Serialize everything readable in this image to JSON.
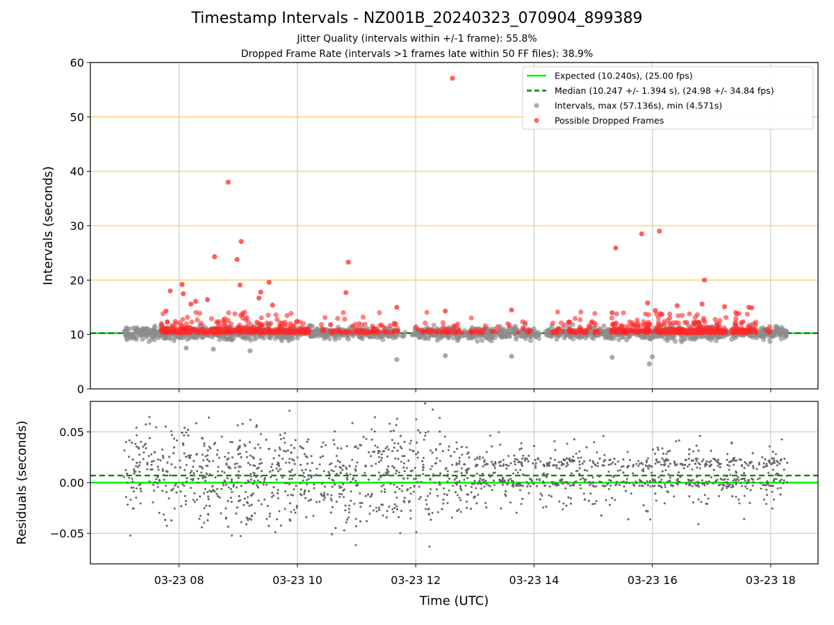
{
  "header": {
    "title": "Timestamp Intervals - NZ001B_20240323_070904_899389",
    "subtitle1": "Jitter Quality (intervals within +/-1 frame): 55.8%",
    "subtitle2": "Dropped Frame Rate (intervals >1 frames late within 50 FF files): 38.9%"
  },
  "colors": {
    "expected": "#00ee00",
    "median": "#007a00",
    "intervals": "#8c8c8c",
    "dropped": "#ff2a2a",
    "threshold": "#ffcc66",
    "grid": "#cccccc",
    "residuals": "#666666"
  },
  "chart_data": [
    {
      "type": "scatter",
      "ylabel": "Intervals (seconds)",
      "xlim": [
        6.5,
        18.8
      ],
      "ylim": [
        0,
        60
      ],
      "yticks": [
        "0",
        "10",
        "20",
        "30",
        "40",
        "50",
        "60"
      ],
      "threshold_lines_y": [
        20,
        30,
        40,
        50
      ],
      "expected": 10.24,
      "median": 10.247,
      "legend_position": "top-right",
      "grid": "vertical",
      "legend": [
        {
          "key": "expected",
          "label": "Expected (10.240s), (25.00 fps)"
        },
        {
          "key": "median",
          "label": "Median (10.247 +/- 1.394 s), (24.98 +/- 34.84 fps)"
        },
        {
          "key": "intervals",
          "label": "Intervals, max (57.136s), min (4.571s)"
        },
        {
          "key": "dropped",
          "label": "Possible Dropped Frames"
        }
      ],
      "interval_summary": {
        "max": 57.136,
        "min": 4.571,
        "time_start": 7.07,
        "time_end": 18.28
      },
      "dropped_outliers": [
        {
          "x": 12.62,
          "y": 57.1
        },
        {
          "x": 8.83,
          "y": 38.0
        },
        {
          "x": 8.6,
          "y": 24.3
        },
        {
          "x": 8.98,
          "y": 23.8
        },
        {
          "x": 9.05,
          "y": 27.1
        },
        {
          "x": 9.03,
          "y": 19.1
        },
        {
          "x": 8.05,
          "y": 19.2
        },
        {
          "x": 7.85,
          "y": 18.0
        },
        {
          "x": 8.07,
          "y": 17.5
        },
        {
          "x": 9.52,
          "y": 19.6
        },
        {
          "x": 9.38,
          "y": 17.8
        },
        {
          "x": 10.86,
          "y": 23.3
        },
        {
          "x": 10.82,
          "y": 17.7
        },
        {
          "x": 15.38,
          "y": 25.9
        },
        {
          "x": 15.82,
          "y": 28.5
        },
        {
          "x": 16.12,
          "y": 29.0
        },
        {
          "x": 16.88,
          "y": 20.0
        },
        {
          "x": 8.2,
          "y": 15.6
        },
        {
          "x": 8.28,
          "y": 16.1
        },
        {
          "x": 8.48,
          "y": 16.4
        },
        {
          "x": 9.58,
          "y": 15.4
        },
        {
          "x": 9.35,
          "y": 16.7
        },
        {
          "x": 11.68,
          "y": 15.0
        },
        {
          "x": 15.92,
          "y": 15.8
        },
        {
          "x": 16.05,
          "y": 14.4
        },
        {
          "x": 16.42,
          "y": 15.3
        },
        {
          "x": 16.84,
          "y": 15.6
        },
        {
          "x": 17.22,
          "y": 15.1
        },
        {
          "x": 17.63,
          "y": 15.0
        },
        {
          "x": 17.68,
          "y": 14.9
        },
        {
          "x": 13.62,
          "y": 14.5
        },
        {
          "x": 15.32,
          "y": 14.0
        },
        {
          "x": 12.5,
          "y": 14.3
        },
        {
          "x": 7.78,
          "y": 14.3
        }
      ],
      "sub_outliers": [
        {
          "x": 11.68,
          "y": 5.4
        },
        {
          "x": 12.5,
          "y": 6.1
        },
        {
          "x": 13.62,
          "y": 6.0
        },
        {
          "x": 15.32,
          "y": 5.8
        },
        {
          "x": 15.95,
          "y": 4.6
        },
        {
          "x": 16.0,
          "y": 5.9
        },
        {
          "x": 8.12,
          "y": 7.5
        },
        {
          "x": 8.58,
          "y": 7.3
        },
        {
          "x": 9.2,
          "y": 7.0
        }
      ]
    },
    {
      "type": "scatter",
      "ylabel": "Residuals (seconds)",
      "xlabel": "Time (UTC)",
      "xlim": [
        6.5,
        18.8
      ],
      "ylim": [
        -0.08,
        0.08
      ],
      "yticks": [
        {
          "value": 0.05,
          "label": "0.05"
        },
        {
          "value": 0.0,
          "label": "0.00"
        },
        {
          "value": -0.05,
          "label": "−0.05"
        }
      ],
      "xticks": [
        {
          "value": 8,
          "label": "03-23 08"
        },
        {
          "value": 10,
          "label": "03-23 10"
        },
        {
          "value": 12,
          "label": "03-23 12"
        },
        {
          "value": 14,
          "label": "03-23 14"
        },
        {
          "value": 16,
          "label": "03-23 16"
        },
        {
          "value": 18,
          "label": "03-23 18"
        }
      ],
      "zero_line": 0.0,
      "median_offset": 0.007,
      "grid": "both"
    }
  ]
}
